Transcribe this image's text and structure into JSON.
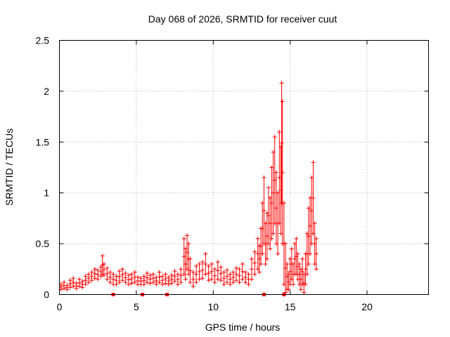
{
  "chart_data": {
    "type": "scatter",
    "title": "Day 068 of 2026, SRMTID for receiver cuut",
    "xlabel": "GPS time / hours",
    "ylabel": "SRMTID / TECUs",
    "xlim": [
      0,
      24
    ],
    "ylim": [
      0,
      2.5
    ],
    "xticks": [
      0,
      5,
      10,
      15,
      20
    ],
    "xtick_labels": [
      "0",
      "5",
      "10",
      "15",
      "20"
    ],
    "yticks": [
      0,
      0.5,
      1,
      1.5,
      2,
      2.5
    ],
    "ytick_labels": [
      "0",
      "0.5",
      "1",
      "1.5",
      "2",
      "2.5"
    ],
    "grid": true,
    "marker": "+",
    "color": "#ff0000",
    "series": [
      {
        "name": "SRMTID",
        "x": [
          0.1,
          0.3,
          0.5,
          0.7,
          0.9,
          1.1,
          1.3,
          1.5,
          1.7,
          1.9,
          2.1,
          2.3,
          2.5,
          2.7,
          2.8,
          2.9,
          3.1,
          3.3,
          3.5,
          3.7,
          3.9,
          4.1,
          4.3,
          4.5,
          4.7,
          4.9,
          5.1,
          5.3,
          5.5,
          5.7,
          5.9,
          6.1,
          6.3,
          6.5,
          6.7,
          6.9,
          7.1,
          7.3,
          7.5,
          7.7,
          7.9,
          8.1,
          8.2,
          8.3,
          8.4,
          8.5,
          8.7,
          8.9,
          9.1,
          9.3,
          9.5,
          9.7,
          9.9,
          10.1,
          10.3,
          10.5,
          10.7,
          10.9,
          11.1,
          11.3,
          11.5,
          11.7,
          11.9,
          12.1,
          12.3,
          12.5,
          12.7,
          12.9,
          13.0,
          13.1,
          13.2,
          13.3,
          13.4,
          13.5,
          13.6,
          13.7,
          13.8,
          13.9,
          14.0,
          14.1,
          14.2,
          14.3,
          14.4,
          14.45,
          14.5,
          14.6,
          14.7,
          14.8,
          14.9,
          15.0,
          15.1,
          15.2,
          15.3,
          15.4,
          15.5,
          15.6,
          15.7,
          15.8,
          15.9,
          16.0,
          16.1,
          16.2,
          16.3,
          16.4,
          16.5,
          16.6,
          16.7
        ],
        "y": [
          0.1,
          0.12,
          0.09,
          0.14,
          0.16,
          0.11,
          0.15,
          0.13,
          0.18,
          0.2,
          0.22,
          0.25,
          0.24,
          0.27,
          0.38,
          0.3,
          0.26,
          0.22,
          0.2,
          0.18,
          0.23,
          0.25,
          0.21,
          0.19,
          0.2,
          0.22,
          0.17,
          0.16,
          0.18,
          0.21,
          0.19,
          0.2,
          0.17,
          0.22,
          0.18,
          0.2,
          0.17,
          0.19,
          0.23,
          0.2,
          0.25,
          0.55,
          0.45,
          0.58,
          0.5,
          0.35,
          0.22,
          0.28,
          0.3,
          0.32,
          0.4,
          0.28,
          0.3,
          0.25,
          0.32,
          0.27,
          0.22,
          0.24,
          0.2,
          0.22,
          0.26,
          0.25,
          0.3,
          0.22,
          0.2,
          0.35,
          0.42,
          0.55,
          0.48,
          0.65,
          0.9,
          1.15,
          0.7,
          0.8,
          1.05,
          0.95,
          1.25,
          1.4,
          1.55,
          1.2,
          1.0,
          1.6,
          1.45,
          2.08,
          1.9,
          0.9,
          0.5,
          0.3,
          0.2,
          0.35,
          0.45,
          0.3,
          0.5,
          0.55,
          0.4,
          0.3,
          0.25,
          0.35,
          0.2,
          0.4,
          0.6,
          0.85,
          0.95,
          1.15,
          1.3,
          0.7,
          0.55
        ],
        "y_min": [
          0.05,
          0.06,
          0.05,
          0.07,
          0.08,
          0.06,
          0.08,
          0.07,
          0.1,
          0.12,
          0.14,
          0.16,
          0.15,
          0.18,
          0.2,
          0.19,
          0.15,
          0.12,
          0.1,
          0.1,
          0.12,
          0.14,
          0.12,
          0.1,
          0.11,
          0.12,
          0.1,
          0.1,
          0.1,
          0.12,
          0.11,
          0.12,
          0.1,
          0.12,
          0.1,
          0.11,
          0.1,
          0.11,
          0.13,
          0.1,
          0.12,
          0.2,
          0.15,
          0.25,
          0.2,
          0.12,
          0.08,
          0.12,
          0.15,
          0.16,
          0.2,
          0.14,
          0.15,
          0.12,
          0.15,
          0.14,
          0.1,
          0.12,
          0.1,
          0.12,
          0.14,
          0.12,
          0.15,
          0.12,
          0.1,
          0.15,
          0.2,
          0.25,
          0.22,
          0.3,
          0.4,
          0.5,
          0.3,
          0.35,
          0.5,
          0.45,
          0.55,
          0.6,
          0.7,
          0.5,
          0.4,
          0.7,
          0.6,
          0.9,
          0.5,
          0.1,
          0.02,
          0.05,
          0.05,
          0.1,
          0.15,
          0.1,
          0.2,
          0.2,
          0.15,
          0.1,
          0.05,
          0.1,
          0.02,
          0.1,
          0.2,
          0.3,
          0.4,
          0.5,
          0.6,
          0.3,
          0.25
        ]
      }
    ],
    "baseline_markers_x": [
      3.5,
      5.4,
      7.0,
      13.3,
      14.6
    ]
  }
}
